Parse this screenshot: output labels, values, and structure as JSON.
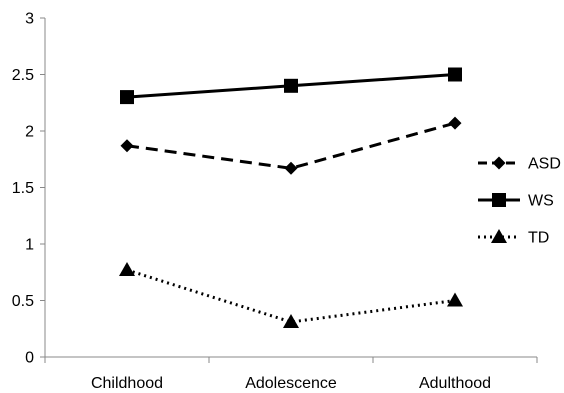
{
  "chart_data": {
    "type": "line",
    "title": "",
    "xlabel": "",
    "ylabel": "",
    "categories": [
      "Childhood",
      "Adolescence",
      "Adulthood"
    ],
    "ylim": [
      0,
      3
    ],
    "yticks": [
      "0",
      "0.5",
      "1",
      "1.5",
      "2",
      "2.5",
      "3"
    ],
    "grid": false,
    "legend_position": "right",
    "series": [
      {
        "name": "ASD",
        "values": [
          1.87,
          1.67,
          2.07
        ],
        "line_style": "dashed",
        "marker": "diamond"
      },
      {
        "name": "WS",
        "values": [
          2.3,
          2.4,
          2.5
        ],
        "line_style": "solid",
        "marker": "square"
      },
      {
        "name": "TD",
        "values": [
          0.77,
          0.31,
          0.5
        ],
        "line_style": "dotted",
        "marker": "triangle"
      }
    ],
    "colors": {
      "line": "#000000",
      "axis": "#888888"
    }
  }
}
